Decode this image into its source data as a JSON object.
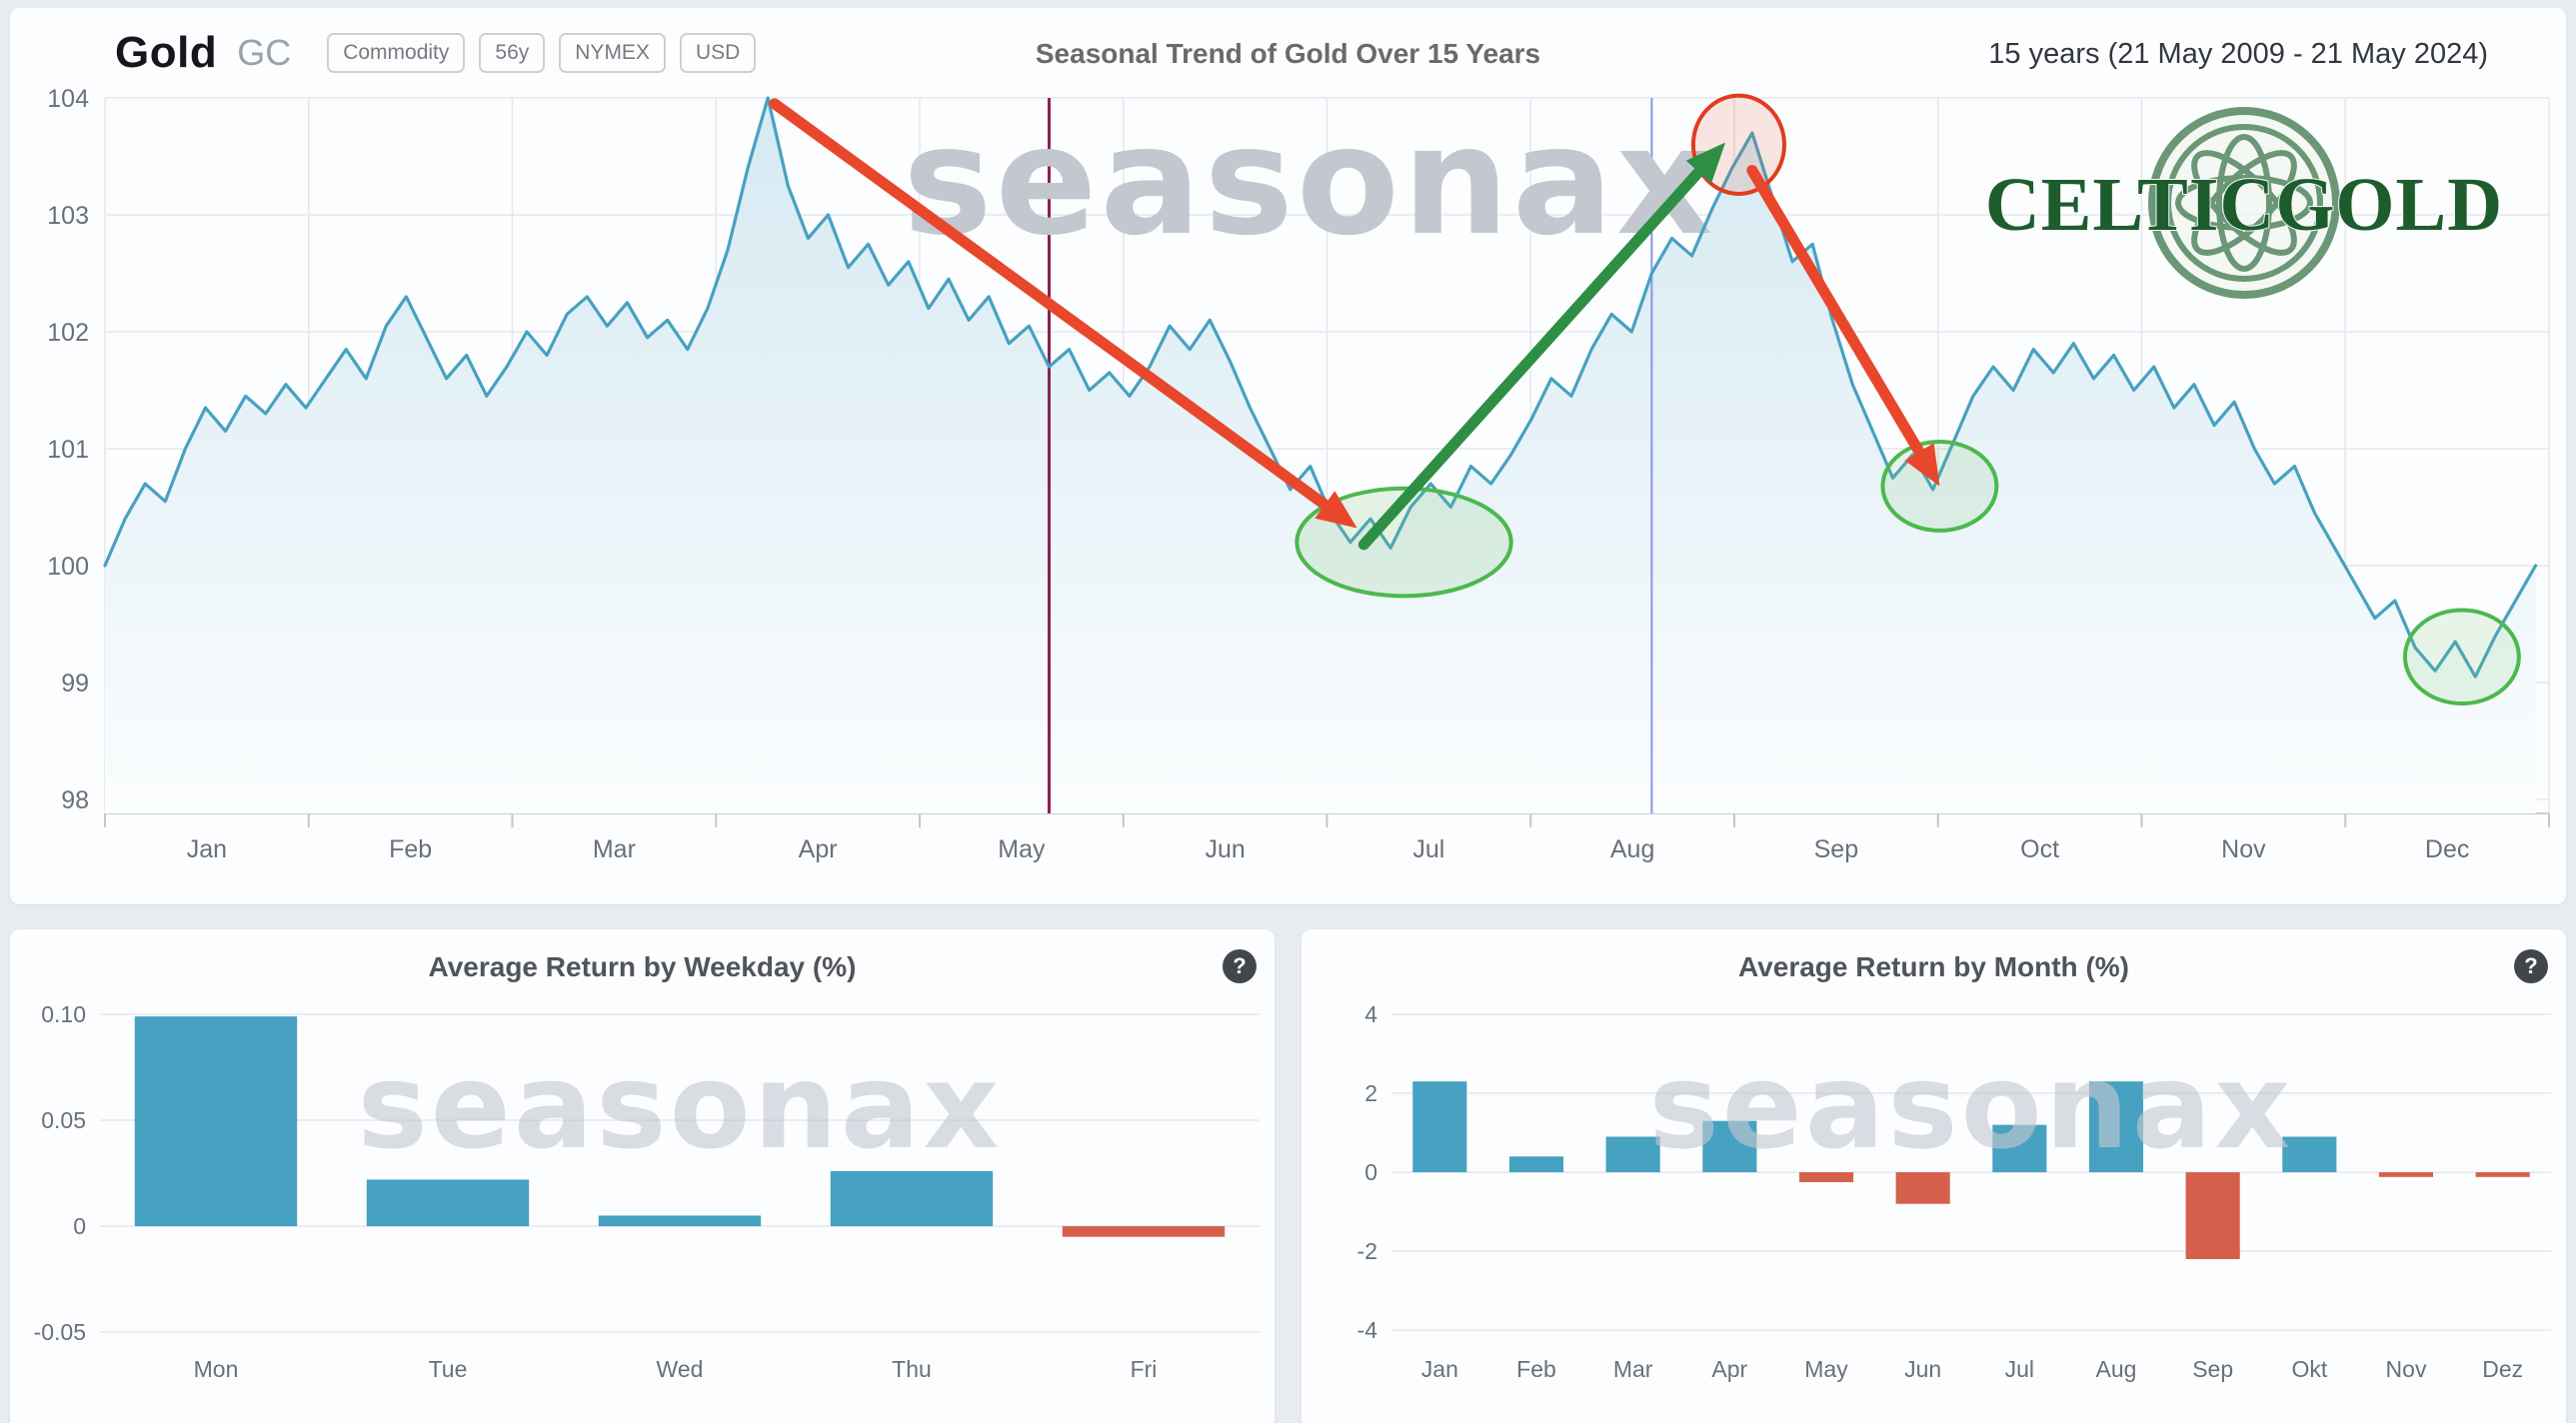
{
  "header": {
    "instrument": "Gold",
    "symbol": "GC",
    "badges": [
      "Commodity",
      "56y",
      "NYMEX",
      "USD"
    ],
    "range": "15 years (21 May 2009 - 21 May 2024)"
  },
  "logo": {
    "text": "CELTICGOLD"
  },
  "watermark": "seasonax",
  "ui": {
    "help_glyph": "?"
  },
  "colors": {
    "accent_teal": "#47a1c1",
    "negative_red": "#d4604c",
    "annotation_red": "#e8472b",
    "annotation_green": "#2e8f44",
    "logo_green": "#1e5c2e"
  },
  "chart_data": [
    {
      "type": "line",
      "title": "Seasonal Trend of Gold Over 15 Years",
      "x_months": [
        "Jan",
        "Feb",
        "Mar",
        "Apr",
        "May",
        "Jun",
        "Jul",
        "Aug",
        "Sep",
        "Oct",
        "Nov",
        "Dec"
      ],
      "ylim": [
        98,
        104
      ],
      "yticks": [
        98,
        99,
        100,
        101,
        102,
        103,
        104
      ],
      "line_color": "#47a1c1",
      "area_top_color": "#d5e9f2",
      "area_bottom_color": "#fbfdfe",
      "values": [
        100.0,
        100.4,
        100.7,
        100.55,
        101.0,
        101.35,
        101.15,
        101.45,
        101.3,
        101.55,
        101.35,
        101.6,
        101.85,
        101.6,
        102.05,
        102.3,
        101.95,
        101.6,
        101.8,
        101.45,
        101.7,
        102.0,
        101.8,
        102.15,
        102.3,
        102.05,
        102.25,
        101.95,
        102.1,
        101.85,
        102.2,
        102.7,
        103.4,
        104.0,
        103.25,
        102.8,
        103.0,
        102.55,
        102.75,
        102.4,
        102.6,
        102.2,
        102.45,
        102.1,
        102.3,
        101.9,
        102.05,
        101.7,
        101.85,
        101.5,
        101.65,
        101.45,
        101.7,
        102.05,
        101.85,
        102.1,
        101.75,
        101.35,
        101.0,
        100.65,
        100.85,
        100.45,
        100.2,
        100.4,
        100.15,
        100.5,
        100.7,
        100.5,
        100.85,
        100.7,
        100.95,
        101.25,
        101.6,
        101.45,
        101.85,
        102.15,
        102.0,
        102.5,
        102.8,
        102.65,
        103.05,
        103.4,
        103.7,
        103.15,
        102.6,
        102.75,
        102.1,
        101.55,
        101.15,
        100.75,
        100.95,
        100.65,
        101.05,
        101.45,
        101.7,
        101.5,
        101.85,
        101.65,
        101.9,
        101.6,
        101.8,
        101.5,
        101.7,
        101.35,
        101.55,
        101.2,
        101.4,
        101.0,
        100.7,
        100.85,
        100.45,
        100.15,
        99.85,
        99.55,
        99.7,
        99.3,
        99.1,
        99.35,
        99.05,
        99.4,
        99.7,
        100.0
      ],
      "annotations": {
        "vlines": [
          {
            "day": 141,
            "color": "#8a2251",
            "width": 3
          },
          {
            "day": 231,
            "color": "#8794ee",
            "width": 2
          }
        ],
        "ellipses": [
          {
            "day": 194,
            "value": 100.2,
            "rx_days": 16,
            "ry_units": 0.46,
            "stroke": "#4db84e",
            "fill": "rgba(120,195,110,0.18)"
          },
          {
            "day": 274,
            "value": 100.68,
            "rx_days": 8.5,
            "ry_units": 0.38,
            "stroke": "#4db84e",
            "fill": "rgba(120,195,110,0.15)"
          },
          {
            "day": 352,
            "value": 99.22,
            "rx_days": 8.5,
            "ry_units": 0.4,
            "stroke": "#4db84e",
            "fill": "rgba(120,195,110,0.15)"
          }
        ],
        "highlight_circle": {
          "day": 244,
          "value": 103.6,
          "rx_days": 6.8,
          "ry_units": 0.42,
          "stroke": "#e23c1e",
          "fill": "rgba(226,90,60,0.15)"
        },
        "arrows": [
          {
            "from": [
              100,
              103.95
            ],
            "to": [
              187,
              100.32
            ],
            "color": "#e8472b"
          },
          {
            "from": [
              188,
              100.18
            ],
            "to": [
              242,
              103.62
            ],
            "color": "#2e8f44"
          },
          {
            "from": [
              246,
              103.38
            ],
            "to": [
              274,
              100.68
            ],
            "color": "#e8472b"
          }
        ]
      }
    },
    {
      "type": "bar",
      "title": "Average Return by Weekday (%)",
      "categories": [
        "Mon",
        "Tue",
        "Wed",
        "Thu",
        "Fri"
      ],
      "values": [
        0.099,
        0.022,
        0.005,
        0.026,
        -0.005
      ],
      "ylim": [
        -0.0627,
        0.1071
      ],
      "yticks": [
        0.1,
        0.05,
        0,
        -0.05
      ],
      "ytick_labels": [
        "0.10",
        "0.05",
        "0",
        "-0.05"
      ],
      "bar_ratio": 0.7,
      "positive_color": "#47a1c1",
      "negative_color": "#d4604c"
    },
    {
      "type": "bar",
      "title": "Average Return by Month (%)",
      "categories": [
        "Jan",
        "Feb",
        "Mar",
        "Apr",
        "May",
        "Jun",
        "Jul",
        "Aug",
        "Sep",
        "Okt",
        "Nov",
        "Dez"
      ],
      "values": [
        2.3,
        0.4,
        0.9,
        1.3,
        -0.25,
        -0.8,
        1.2,
        2.3,
        -2.2,
        0.9,
        -0.12,
        -0.12
      ],
      "ylim": [
        -4.73,
        4.38
      ],
      "yticks": [
        4,
        2,
        0,
        -2,
        -4
      ],
      "ytick_labels": [
        "4",
        "2",
        "0",
        "-2",
        "-4"
      ],
      "bar_ratio": 0.56,
      "positive_color": "#47a1c1",
      "negative_color": "#d4604c"
    }
  ]
}
